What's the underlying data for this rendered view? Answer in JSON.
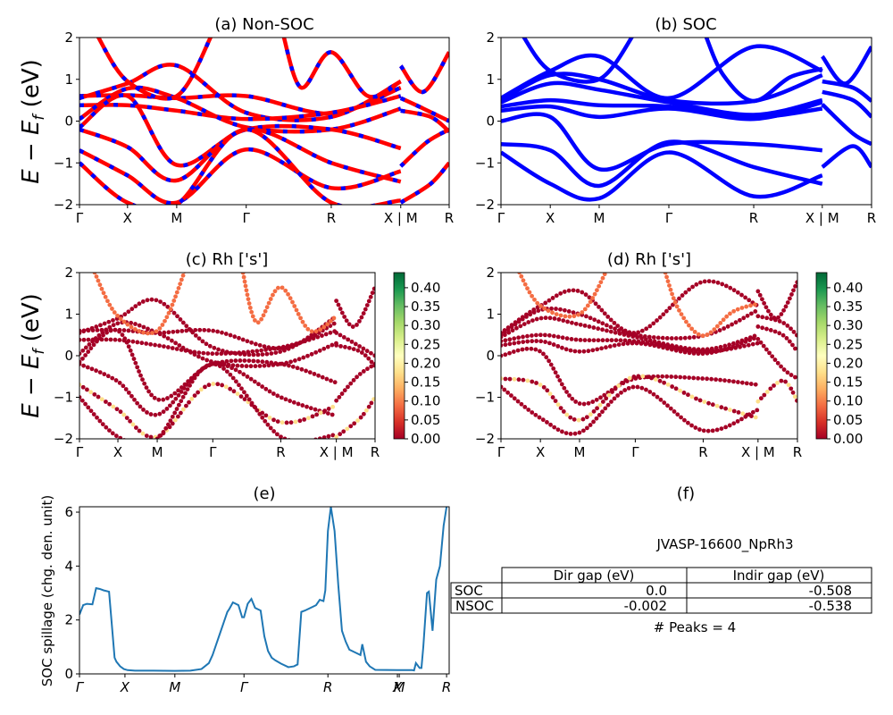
{
  "figure": {
    "ylabel_energy": "E − E_f (eV)",
    "material_id": "JVASP-16600_NpRh3",
    "peaks_text": "# Peaks = 4"
  },
  "colors": {
    "nonsoc_red": "#ff0000",
    "nonsoc_blue": "#0000ff",
    "soc_blue": "#0000ff",
    "spillage_line": "#1f77b4",
    "colormap": "RdYlGn"
  },
  "chart_data": [
    {
      "id": "a",
      "type": "line",
      "title": "(a) Non-SOC",
      "ylabel": "E − E_f (eV)",
      "ylim": [
        -2,
        2
      ],
      "yticks": [
        "−2",
        "−1",
        "0",
        "1",
        "2"
      ],
      "ytick_values": [
        -2,
        -1,
        0,
        1,
        2
      ],
      "kpath_labels": [
        "Γ",
        "X",
        "M",
        "Γ",
        "R",
        "X | M",
        "R"
      ],
      "kpath_positions": [
        0,
        0.13,
        0.263,
        0.451,
        0.681,
        0.869,
        1.0
      ],
      "style": "red line with blue dashes overlay",
      "bands": [
        [
          [
            0,
            0.6
          ],
          [
            0.13,
            0.62
          ],
          [
            0.263,
            0.55
          ],
          [
            0.451,
            0.6
          ],
          [
            0.681,
            0.18
          ],
          [
            0.869,
            0.8
          ]
        ],
        [
          [
            0,
            0.55
          ],
          [
            0.13,
            0.9
          ],
          [
            0.263,
            1.33
          ],
          [
            0.451,
            0.2
          ],
          [
            0.681,
            0.1
          ],
          [
            0.869,
            0.95
          ]
        ],
        [
          [
            0,
            0.38
          ],
          [
            0.13,
            0.38
          ],
          [
            0.263,
            0.25
          ],
          [
            0.451,
            0.05
          ],
          [
            0.681,
            0.2
          ],
          [
            0.869,
            0.6
          ]
        ],
        [
          [
            0,
            0.05
          ],
          [
            0.13,
            0.78
          ],
          [
            0.263,
            0.55
          ],
          [
            0.451,
            -0.15
          ],
          [
            0.681,
            -0.2
          ],
          [
            0.869,
            0.3
          ]
        ],
        [
          [
            0,
            -0.15
          ],
          [
            0.13,
            0.6
          ],
          [
            0.263,
            -1.05
          ],
          [
            0.451,
            -0.2
          ],
          [
            0.681,
            -0.2
          ],
          [
            0.869,
            -0.65
          ]
        ],
        [
          [
            0,
            -0.2
          ],
          [
            0.13,
            -0.62
          ],
          [
            0.263,
            -1.42
          ],
          [
            0.451,
            -0.2
          ],
          [
            0.681,
            -1.0
          ],
          [
            0.869,
            -1.45
          ]
        ],
        [
          [
            0,
            -0.7
          ],
          [
            0.13,
            -1.3
          ],
          [
            0.263,
            -1.95
          ],
          [
            0.451,
            -0.68
          ],
          [
            0.681,
            -1.6
          ],
          [
            0.869,
            -1.2
          ]
        ],
        [
          [
            0,
            -1.0
          ],
          [
            0.13,
            -1.95
          ],
          [
            0.263,
            -2.0
          ],
          [
            0.451,
            -0.2
          ],
          [
            0.681,
            -1.95
          ],
          [
            0.869,
            -1.9
          ]
        ],
        [
          [
            0.045,
            2.1
          ],
          [
            0.13,
            0.95
          ],
          [
            0.263,
            0.6
          ],
          [
            0.36,
            2.1
          ]
        ],
        [
          [
            0.55,
            2.1
          ],
          [
            0.6,
            0.8
          ],
          [
            0.681,
            1.65
          ],
          [
            0.78,
            0.6
          ],
          [
            0.869,
            0.95
          ]
        ],
        [
          [
            0.869,
            1.32
          ],
          [
            0.93,
            0.7
          ],
          [
            1.0,
            1.65
          ]
        ],
        [
          [
            0.869,
            0.55
          ],
          [
            0.93,
            0.3
          ],
          [
            1.0,
            0.0
          ]
        ],
        [
          [
            0.869,
            0.25
          ],
          [
            0.95,
            0.1
          ],
          [
            1.0,
            -0.25
          ]
        ],
        [
          [
            0.869,
            -1.08
          ],
          [
            0.94,
            -0.5
          ],
          [
            1.0,
            -0.2
          ]
        ],
        [
          [
            0.869,
            -1.95
          ],
          [
            0.95,
            -1.5
          ],
          [
            1.0,
            -1.0
          ]
        ]
      ]
    },
    {
      "id": "b",
      "type": "line",
      "title": "(b) SOC",
      "ylim": [
        -2,
        2
      ],
      "yticks": [
        "−2",
        "−1",
        "0",
        "1",
        "2"
      ],
      "ytick_values": [
        -2,
        -1,
        0,
        1,
        2
      ],
      "kpath_labels": [
        "Γ",
        "X",
        "M",
        "Γ",
        "R",
        "X | M",
        "R"
      ],
      "kpath_positions": [
        0,
        0.133,
        0.265,
        0.453,
        0.682,
        0.867,
        1.0
      ],
      "style": "solid blue",
      "bands": [
        [
          [
            0,
            0.55
          ],
          [
            0.133,
            1.2
          ],
          [
            0.265,
            1.55
          ],
          [
            0.453,
            0.55
          ],
          [
            0.682,
            1.78
          ],
          [
            0.867,
            1.2
          ]
        ],
        [
          [
            0,
            0.5
          ],
          [
            0.133,
            1.1
          ],
          [
            0.265,
            1.0
          ],
          [
            0.453,
            0.5
          ],
          [
            0.682,
            0.48
          ],
          [
            0.867,
            1.1
          ]
        ],
        [
          [
            0,
            0.45
          ],
          [
            0.133,
            0.9
          ],
          [
            0.265,
            0.75
          ],
          [
            0.453,
            0.45
          ],
          [
            0.682,
            0.15
          ],
          [
            0.867,
            0.5
          ]
        ],
        [
          [
            0,
            0.35
          ],
          [
            0.133,
            0.5
          ],
          [
            0.265,
            0.38
          ],
          [
            0.453,
            0.35
          ],
          [
            0.682,
            0.1
          ],
          [
            0.867,
            0.3
          ]
        ],
        [
          [
            0,
            0.25
          ],
          [
            0.133,
            0.35
          ],
          [
            0.265,
            0.1
          ],
          [
            0.453,
            0.3
          ],
          [
            0.682,
            0.05
          ],
          [
            0.867,
            0.45
          ]
        ],
        [
          [
            0,
            0.0
          ],
          [
            0.133,
            0.1
          ],
          [
            0.265,
            -1.15
          ],
          [
            0.453,
            -0.55
          ],
          [
            0.682,
            -0.55
          ],
          [
            0.867,
            -0.7
          ]
        ],
        [
          [
            0,
            -0.55
          ],
          [
            0.133,
            -0.7
          ],
          [
            0.265,
            -1.55
          ],
          [
            0.453,
            -0.5
          ],
          [
            0.682,
            -1.1
          ],
          [
            0.867,
            -1.5
          ]
        ],
        [
          [
            0,
            -0.75
          ],
          [
            0.133,
            -1.5
          ],
          [
            0.265,
            -1.85
          ],
          [
            0.453,
            -0.75
          ],
          [
            0.682,
            -1.8
          ],
          [
            0.867,
            -1.3
          ]
        ],
        [
          [
            0.055,
            2.1
          ],
          [
            0.133,
            1.2
          ],
          [
            0.265,
            1.0
          ],
          [
            0.36,
            2.1
          ]
        ],
        [
          [
            0.55,
            2.1
          ],
          [
            0.6,
            1.1
          ],
          [
            0.682,
            0.48
          ],
          [
            0.78,
            1.05
          ],
          [
            0.867,
            1.25
          ]
        ],
        [
          [
            0.867,
            1.55
          ],
          [
            0.93,
            0.9
          ],
          [
            1.0,
            1.78
          ]
        ],
        [
          [
            0.867,
            0.95
          ],
          [
            0.95,
            0.8
          ],
          [
            1.0,
            0.48
          ]
        ],
        [
          [
            0.867,
            0.7
          ],
          [
            0.95,
            0.5
          ],
          [
            1.0,
            0.1
          ]
        ],
        [
          [
            0.867,
            0.4
          ],
          [
            0.95,
            -0.3
          ],
          [
            1.0,
            -0.55
          ]
        ],
        [
          [
            0.867,
            -1.1
          ],
          [
            0.95,
            -0.6
          ],
          [
            1.0,
            -1.1
          ]
        ]
      ]
    },
    {
      "id": "c",
      "type": "scatter",
      "title": "(c)  Rh ['s']",
      "ylim": [
        -2,
        2
      ],
      "yticks": [
        "−2",
        "−1",
        "0",
        "1",
        "2"
      ],
      "ytick_values": [
        -2,
        -1,
        0,
        1,
        2
      ],
      "kpath_labels": [
        "Γ",
        "X",
        "M",
        "Γ",
        "R",
        "X | M",
        "R"
      ],
      "kpath_positions": [
        0,
        0.13,
        0.263,
        0.451,
        0.681,
        0.869,
        1.0
      ],
      "colorbar": {
        "cmap": "RdYlGn",
        "range": [
          0,
          0.44
        ],
        "ticks": [
          "0.00",
          "0.05",
          "0.10",
          "0.15",
          "0.20",
          "0.25",
          "0.30",
          "0.35",
          "0.40"
        ],
        "tick_values": [
          0,
          0.05,
          0.1,
          0.15,
          0.2,
          0.25,
          0.3,
          0.35,
          0.4
        ]
      },
      "dominant_weight": 0.0,
      "highlight_weights": [
        0.1,
        0.18
      ]
    },
    {
      "id": "d",
      "type": "scatter",
      "title": "(d) Rh ['s']",
      "ylim": [
        -2,
        2
      ],
      "yticks": [
        "−2",
        "−1",
        "0",
        "1",
        "2"
      ],
      "ytick_values": [
        -2,
        -1,
        0,
        1,
        2
      ],
      "kpath_labels": [
        "Γ",
        "X",
        "M",
        "Γ",
        "R",
        "X | M",
        "R"
      ],
      "kpath_positions": [
        0,
        0.133,
        0.265,
        0.453,
        0.682,
        0.867,
        1.0
      ],
      "colorbar": {
        "cmap": "RdYlGn",
        "range": [
          0,
          0.44
        ],
        "ticks": [
          "0.00",
          "0.05",
          "0.10",
          "0.15",
          "0.20",
          "0.25",
          "0.30",
          "0.35",
          "0.40"
        ],
        "tick_values": [
          0,
          0.05,
          0.1,
          0.15,
          0.2,
          0.25,
          0.3,
          0.35,
          0.4
        ]
      },
      "dominant_weight": 0.0,
      "highlight_weights": [
        0.1,
        0.18
      ]
    },
    {
      "id": "e",
      "type": "line",
      "title": "(e)",
      "ylabel": "SOC spillage (chg. den. unit)",
      "ylim": [
        0,
        6.2
      ],
      "yticks": [
        "0",
        "2",
        "4",
        "6"
      ],
      "ytick_values": [
        0,
        2,
        4,
        6
      ],
      "kpath_labels": [
        "Γ",
        "X",
        "M",
        "Γ",
        "R",
        "X",
        "M",
        "R"
      ],
      "kpath_positions": [
        0,
        0.123,
        0.258,
        0.445,
        0.672,
        0.86,
        0.865,
        0.993
      ],
      "x": [
        0,
        0.01,
        0.02,
        0.035,
        0.045,
        0.055,
        0.065,
        0.08,
        0.095,
        0.1,
        0.11,
        0.12,
        0.13,
        0.15,
        0.2,
        0.258,
        0.3,
        0.33,
        0.35,
        0.36,
        0.37,
        0.38,
        0.39,
        0.4,
        0.405,
        0.415,
        0.42,
        0.43,
        0.44,
        0.445,
        0.455,
        0.465,
        0.475,
        0.49,
        0.5,
        0.51,
        0.52,
        0.53,
        0.545,
        0.565,
        0.58,
        0.59,
        0.6,
        0.61,
        0.625,
        0.64,
        0.65,
        0.66,
        0.665,
        0.672,
        0.68,
        0.69,
        0.7,
        0.71,
        0.72,
        0.73,
        0.745,
        0.76,
        0.765,
        0.775,
        0.785,
        0.8,
        0.86,
        0.9,
        0.905,
        0.91,
        0.92,
        0.925,
        0.93,
        0.94,
        0.945,
        0.955,
        0.965,
        0.975,
        0.985,
        0.993
      ],
      "values": [
        2.2,
        2.55,
        2.6,
        2.58,
        3.18,
        3.15,
        3.1,
        3.05,
        0.6,
        0.45,
        0.28,
        0.18,
        0.14,
        0.12,
        0.12,
        0.11,
        0.12,
        0.18,
        0.4,
        0.7,
        1.1,
        1.5,
        1.9,
        2.3,
        2.4,
        2.65,
        2.62,
        2.55,
        2.1,
        2.1,
        2.6,
        2.78,
        2.45,
        2.35,
        1.4,
        0.85,
        0.6,
        0.5,
        0.38,
        0.25,
        0.28,
        0.35,
        2.3,
        2.35,
        2.45,
        2.55,
        2.75,
        2.7,
        3.1,
        5.3,
        6.2,
        5.3,
        3.3,
        1.6,
        1.2,
        0.9,
        0.8,
        0.7,
        1.1,
        0.45,
        0.28,
        0.15,
        0.14,
        0.14,
        0.13,
        0.4,
        0.22,
        0.22,
        1.0,
        3.0,
        3.05,
        1.6,
        3.5,
        4.0,
        5.5,
        6.2
      ]
    },
    {
      "id": "f",
      "type": "table",
      "title": "(f)",
      "subtitle": "JVASP-16600_NpRh3",
      "columns": [
        "",
        "Dir gap (eV)",
        "Indir gap (eV)"
      ],
      "rows": [
        [
          "SOC",
          "0.0",
          "-0.508"
        ],
        [
          "NSOC",
          "-0.002",
          "-0.538"
        ]
      ],
      "footer": "# Peaks = 4"
    }
  ]
}
